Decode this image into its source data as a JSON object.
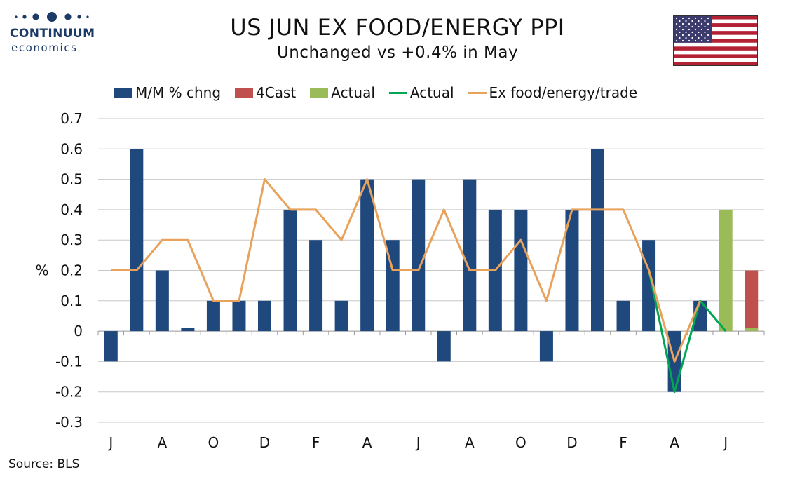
{
  "header": {
    "title": "US JUN EX FOOD/ENERGY PPI",
    "subtitle": "Unchanged vs +0.4% in May"
  },
  "logo": {
    "name": "CONTINUUM",
    "sub": "economics",
    "color": "#1c3a66"
  },
  "flag": {
    "icon": "us-flag-icon"
  },
  "source": "Source: BLS",
  "chart_data": {
    "type": "bar",
    "ylabel": "%",
    "ylim": [
      -0.3,
      0.7
    ],
    "yticks": [
      "0.7",
      "0.6",
      "0.5",
      "0.4",
      "0.3",
      "0.2",
      "0.1",
      "0",
      "-0.1",
      "-0.2",
      "-0.3"
    ],
    "ytick_values": [
      0.7,
      0.6,
      0.5,
      0.4,
      0.3,
      0.2,
      0.1,
      0,
      -0.1,
      -0.2,
      -0.3
    ],
    "xtick_labels": [
      "J",
      "A",
      "O",
      "D",
      "F",
      "A",
      "J",
      "A",
      "O",
      "D",
      "F",
      "A",
      "J"
    ],
    "xtick_periods": [
      1,
      3,
      5,
      7,
      9,
      11,
      13,
      15,
      17,
      19,
      21,
      23,
      25
    ],
    "grid": true,
    "legend_position": "top",
    "series": [
      {
        "name": "M/M % chng",
        "kind": "bar",
        "color": "#1f497d",
        "values": [
          -0.1,
          0.6,
          0.2,
          0.01,
          0.1,
          0.1,
          0.1,
          0.4,
          0.3,
          0.1,
          0.5,
          0.3,
          0.5,
          -0.1,
          0.5,
          0.4,
          0.4,
          -0.1,
          0.4,
          0.6,
          0.1,
          0.3,
          -0.2,
          0.1,
          null,
          null
        ]
      },
      {
        "name": "4Cast",
        "kind": "bar",
        "color": "#c0504d",
        "values": [
          null,
          null,
          null,
          null,
          null,
          null,
          null,
          null,
          null,
          null,
          null,
          null,
          null,
          null,
          null,
          null,
          null,
          null,
          null,
          null,
          null,
          null,
          null,
          null,
          null,
          0.2
        ]
      },
      {
        "name": "Actual",
        "kind": "bar",
        "color": "#9bbb59",
        "values": [
          null,
          null,
          null,
          null,
          null,
          null,
          null,
          null,
          null,
          null,
          null,
          null,
          null,
          null,
          null,
          null,
          null,
          null,
          null,
          null,
          null,
          null,
          null,
          null,
          0.4,
          0.01
        ]
      },
      {
        "name": "Actual",
        "kind": "line",
        "color": "#00a651",
        "values": [
          null,
          null,
          null,
          null,
          null,
          null,
          null,
          null,
          null,
          null,
          null,
          null,
          null,
          null,
          null,
          null,
          null,
          null,
          null,
          null,
          null,
          0.2,
          -0.2,
          0.1,
          0.0,
          null
        ]
      },
      {
        "name": "Ex food/energy/trade",
        "kind": "line",
        "color": "#e8a25c",
        "values": [
          0.2,
          0.2,
          0.3,
          0.3,
          0.1,
          0.1,
          0.5,
          0.4,
          0.4,
          0.3,
          0.5,
          0.2,
          0.2,
          0.4,
          0.2,
          0.2,
          0.3,
          0.1,
          0.4,
          0.4,
          0.4,
          0.2,
          -0.1,
          0.1,
          null,
          null
        ]
      }
    ]
  }
}
